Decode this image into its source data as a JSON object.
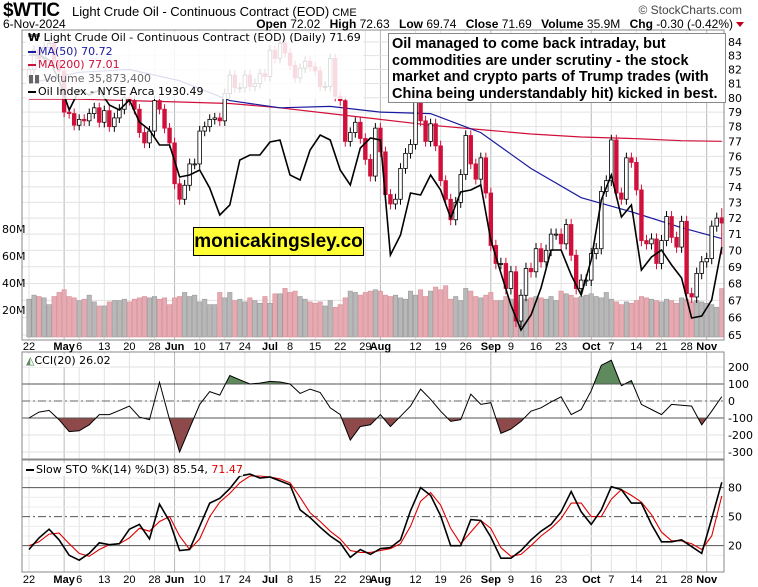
{
  "header": {
    "symbol": "$WTIC",
    "name": "Light Crude Oil - Continuous Contract (EOD)",
    "exchange": "CME",
    "date": "6-Nov-2024",
    "watermark": "© StockCharts.com",
    "quote": {
      "open_label": "Open",
      "open": "72.02",
      "high_label": "High",
      "high": "72.63",
      "low_label": "Low",
      "low": "69.74",
      "close_label": "Close",
      "close": "71.69",
      "volume_label": "Volume",
      "volume": "35.9M",
      "chg_label": "Chg",
      "chg": "-0.30 (-0.42%)",
      "direction": "down"
    }
  },
  "legend": {
    "price": "Light Crude Oil - Continuous Contract (EOD) (Daily) 71.69",
    "ma50": "MA(50) 70.72",
    "ma200": "MA(200) 77.01",
    "volume": "Volume 35,873,400",
    "oil_index": "Oil Index - NYSE Arca 1930.49"
  },
  "annotation": [
    "Oil managed to come back intraday, but",
    "commodities are under scrutiny - the stock",
    "market and crypto parts of Trump trades (with",
    "China being understandably hit) kicked in best."
  ],
  "promo": "monicakingsley.co",
  "colors": {
    "down_candle": "#d0103a",
    "up_candle": "#ffffff",
    "ma50": "#1a1aa0",
    "ma200": "#d0103a",
    "oil_index": "#000000",
    "volume_down": "#e6aab2",
    "volume_up": "#b8b8b8",
    "cci_overbought_fill": "#5e8a5e",
    "cci_oversold_fill": "#8e4a4a",
    "sto_k": "#000000",
    "sto_d": "#e00000",
    "promo_bg": "#ffff33"
  },
  "x_ticks": [
    {
      "label": "22",
      "month": false
    },
    {
      "label": "May",
      "month": true
    },
    {
      "label": "6",
      "month": false
    },
    {
      "label": "13",
      "month": false
    },
    {
      "label": "20",
      "month": false
    },
    {
      "label": "28",
      "month": false
    },
    {
      "label": "Jun",
      "month": true
    },
    {
      "label": "10",
      "month": false
    },
    {
      "label": "17",
      "month": false
    },
    {
      "label": "24",
      "month": false
    },
    {
      "label": "Jul",
      "month": true
    },
    {
      "label": "8",
      "month": false
    },
    {
      "label": "15",
      "month": false
    },
    {
      "label": "22",
      "month": false
    },
    {
      "label": "29",
      "month": false
    },
    {
      "label": "Aug",
      "month": true
    },
    {
      "label": "12",
      "month": false
    },
    {
      "label": "19",
      "month": false
    },
    {
      "label": "26",
      "month": false
    },
    {
      "label": "Sep",
      "month": true
    },
    {
      "label": "9",
      "month": false
    },
    {
      "label": "16",
      "month": false
    },
    {
      "label": "23",
      "month": false
    },
    {
      "label": "Oct",
      "month": true
    },
    {
      "label": "7",
      "month": false
    },
    {
      "label": "14",
      "month": false
    },
    {
      "label": "21",
      "month": false
    },
    {
      "label": "28",
      "month": false
    },
    {
      "label": "Nov",
      "month": true
    }
  ],
  "chart_data": [
    {
      "type": "candlestick",
      "title": "Light Crude Oil - Continuous Contract (EOD) (Daily)",
      "x_range": [
        "22-Apr-2024",
        "6-Nov-2024"
      ],
      "y_scale": "log",
      "ylim": [
        65,
        84
      ],
      "y_ticks": [
        65,
        66,
        67,
        68,
        69,
        70,
        71,
        72,
        73,
        74,
        75,
        76,
        77,
        78,
        79,
        80,
        81,
        82,
        83,
        84
      ],
      "volume_ticks": [
        "20M",
        "40M",
        "60M",
        "80M"
      ],
      "grid": true,
      "last": {
        "open": 72.02,
        "high": 72.63,
        "low": 69.74,
        "close": 71.69
      },
      "close": [
        82.0,
        83.4,
        82.8,
        83.6,
        83.9,
        82.6,
        81.9,
        79.0,
        78.9,
        78.1,
        78.5,
        78.4,
        78.9,
        79.3,
        78.3,
        79.1,
        78.0,
        78.6,
        79.2,
        80.0,
        79.8,
        79.2,
        77.6,
        76.9,
        77.7,
        79.8,
        79.2,
        77.9,
        76.9,
        74.2,
        73.2,
        74.1,
        75.5,
        75.5,
        77.7,
        78.0,
        78.5,
        78.6,
        78.4,
        80.3,
        81.6,
        80.7,
        80.7,
        81.6,
        80.8,
        81.0,
        81.7,
        81.5,
        83.4,
        82.8,
        83.9,
        83.2,
        82.3,
        81.4,
        82.1,
        82.6,
        82.2,
        81.9,
        80.8,
        80.8,
        82.8,
        80.1,
        79.8,
        77.0,
        77.6,
        78.3,
        77.2,
        75.8,
        74.7,
        77.9,
        76.3,
        73.5,
        72.9,
        73.2,
        75.2,
        76.2,
        76.8,
        80.1,
        78.4,
        77.0,
        78.2,
        76.7,
        74.4,
        73.2,
        71.9,
        73.0,
        74.8,
        77.4,
        75.5,
        74.5,
        75.9,
        73.6,
        70.3,
        69.2,
        69.2,
        67.7,
        68.7,
        65.8,
        67.3,
        68.9,
        68.7,
        70.1,
        69.3,
        70.0,
        71.0,
        71.0,
        70.4,
        71.6,
        69.7,
        67.7,
        68.2,
        68.2,
        69.8,
        70.1,
        73.7,
        74.4,
        77.1,
        73.6,
        73.2,
        75.9,
        75.6,
        73.8,
        70.6,
        70.4,
        70.7,
        69.2,
        70.6,
        72.1,
        70.8,
        70.2,
        71.8,
        67.4,
        67.2,
        68.6,
        69.3,
        69.5,
        71.5,
        72.0,
        71.69
      ],
      "volume_millions": [
        28,
        31,
        30,
        29,
        24,
        30,
        33,
        35,
        30,
        29,
        27,
        28,
        31,
        26,
        23,
        23,
        26,
        27,
        27,
        28,
        26,
        28,
        29,
        30,
        29,
        30,
        28,
        29,
        24,
        29,
        30,
        33,
        30,
        31,
        26,
        28,
        24,
        24,
        33,
        29,
        33,
        27,
        28,
        26,
        29,
        27,
        25,
        30,
        25,
        32,
        32,
        36,
        33,
        34,
        30,
        28,
        26,
        25,
        26,
        23,
        27,
        22,
        24,
        29,
        34,
        33,
        31,
        33,
        34,
        35,
        34,
        31,
        30,
        31,
        29,
        28,
        34,
        31,
        35,
        30,
        34,
        37,
        35,
        38,
        28,
        30,
        27,
        36,
        34,
        30,
        29,
        31,
        33,
        27,
        27,
        30,
        28,
        26,
        31,
        28,
        29,
        30,
        29,
        28,
        30,
        27,
        34,
        32,
        31,
        29,
        30,
        31,
        32,
        30,
        29,
        33,
        28,
        26,
        24,
        26,
        25,
        27,
        30,
        29,
        28,
        27,
        26,
        28,
        27,
        25,
        29,
        28,
        26,
        27,
        26,
        25,
        24,
        22,
        35.87
      ],
      "series": [
        {
          "name": "MA(50)",
          "sample_every_trading_days": 10,
          "values": [
            81.0,
            81.8,
            82.0,
            81.2,
            79.8,
            79.3,
            79.4,
            79.0,
            78.9,
            77.6,
            75.2,
            73.3,
            72.4,
            71.4,
            70.72
          ]
        },
        {
          "name": "MA(200)",
          "sample_every_trading_days": 10,
          "values": [
            79.9,
            79.9,
            79.8,
            79.7,
            79.6,
            79.3,
            78.9,
            78.5,
            78.1,
            77.8,
            77.5,
            77.3,
            77.2,
            77.05,
            77.01
          ]
        },
        {
          "name": "Oil Index - NYSE Arca",
          "sample_every_trading_days": 2,
          "values": [
            2160.9,
            2160.9,
            2154.9,
            2130.9,
            2094.9,
            2118.9,
            2112.9,
            2118.9,
            2100.9,
            2094.9,
            2106.9,
            2080.5,
            2070.9,
            2052.9,
            2052.9,
            2014.5,
            2016.9,
            2022.9,
            2001.3,
            1968.9,
            1980.9,
            2034.9,
            2040.9,
            2040.9,
            2056.5,
            2058.9,
            2016.9,
            2010.9,
            2046.9,
            2064.9,
            2058.9,
            2022.9,
            2004.9,
            2049.3,
            2061.3,
            2058.9,
            1920.9,
            1944.9,
            1995.3,
            1992.9,
            2016.9,
            1998.9,
            1965.3,
            1996.5,
            1998.9,
            2004.9,
            1938.9,
            1899.3,
            1860.9,
            1830.9,
            1848.9,
            1881.3,
            1926.9,
            1926.9,
            1896.9,
            1872.9,
            1914.9,
            1986.9,
            2016.9,
            1966.5,
            1980.9,
            1902.9,
            1918.5,
            1926.9,
            1908.9,
            1893.3,
            1845.3,
            1847.7,
            1866.9,
            1930.49
          ]
        }
      ]
    },
    {
      "type": "line",
      "title": "CCI(20) 26.02",
      "ylim": [
        -330,
        280
      ],
      "y_ticks": [
        -300,
        -200,
        -100,
        0,
        100,
        200
      ],
      "reference_lines": [
        100,
        0,
        -100
      ],
      "sample_every_trading_days": 2,
      "values": [
        -100,
        -65,
        -55,
        -110,
        -180,
        -175,
        -140,
        -80,
        -80,
        -55,
        -30,
        -95,
        -110,
        110,
        -110,
        -300,
        -160,
        -20,
        55,
        35,
        150,
        125,
        100,
        105,
        115,
        112,
        100,
        45,
        70,
        50,
        -40,
        -80,
        -230,
        -150,
        -140,
        -80,
        -150,
        -90,
        -30,
        70,
        10,
        -60,
        -120,
        -110,
        40,
        -20,
        -10,
        -190,
        -165,
        -120,
        -60,
        -40,
        -5,
        25,
        -80,
        -50,
        60,
        210,
        240,
        90,
        120,
        -20,
        -50,
        -80,
        -20,
        -25,
        -30,
        -140,
        -60,
        26.02
      ]
    },
    {
      "type": "line",
      "title_prefix": "Slow STO %K(14) %D(3) 85.54,",
      "title_d": "71.47",
      "ylim": [
        0,
        100
      ],
      "y_ticks": [
        20,
        50,
        80
      ],
      "reference_lines": [
        80,
        50,
        20
      ],
      "sample_every_trading_days": 2,
      "series": [
        {
          "name": "%K(14)",
          "values": [
            16,
            28,
            37,
            26,
            10,
            5,
            12,
            23,
            21,
            22,
            37,
            42,
            27,
            63,
            45,
            15,
            16,
            40,
            64,
            69,
            79,
            92,
            94,
            90,
            91,
            87,
            83,
            57,
            49,
            39,
            30,
            23,
            8,
            16,
            11,
            17,
            18,
            26,
            56,
            80,
            72,
            51,
            20,
            20,
            47,
            46,
            29,
            7,
            7,
            15,
            26,
            35,
            42,
            55,
            76,
            55,
            42,
            57,
            81,
            78,
            64,
            64,
            42,
            24,
            24,
            26,
            19,
            12,
            48,
            85.54
          ]
        },
        {
          "name": "%D(3)",
          "values": [
            20,
            24,
            32,
            33,
            22,
            12,
            9,
            16,
            21,
            22,
            28,
            38,
            35,
            45,
            50,
            30,
            16,
            27,
            50,
            65,
            74,
            85,
            92,
            92,
            91,
            89,
            85,
            70,
            54,
            45,
            35,
            27,
            15,
            13,
            13,
            15,
            17,
            22,
            40,
            66,
            75,
            62,
            38,
            22,
            34,
            46,
            38,
            18,
            9,
            11,
            20,
            30,
            38,
            48,
            64,
            64,
            50,
            50,
            68,
            78,
            72,
            65,
            52,
            34,
            25,
            25,
            22,
            16,
            30,
            71.47
          ]
        }
      ]
    }
  ]
}
